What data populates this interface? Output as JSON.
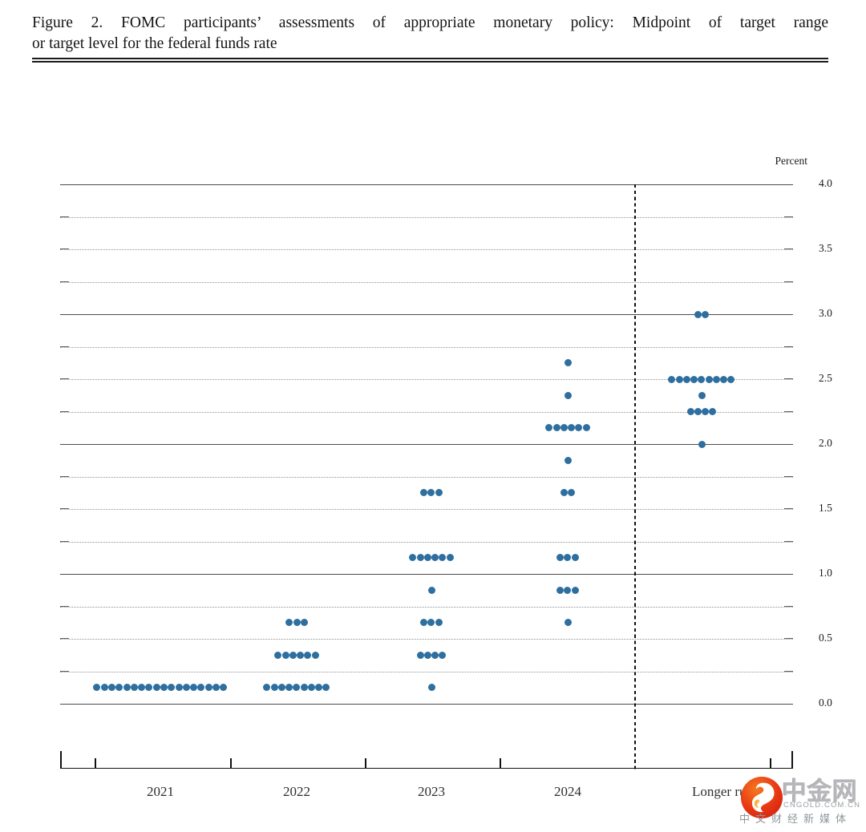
{
  "figure": {
    "title_line1": "Figure 2.  FOMC participants’ assessments of appropriate monetary policy:  Midpoint of target range",
    "title_line2": "or target level for the federal funds rate"
  },
  "watermark": {
    "brand": "中金网",
    "domain": "CNGOLD.COM.CN",
    "tagline": "中文财经新媒体"
  },
  "chart_data": {
    "type": "scatter",
    "subtype": "fomc-dot-plot",
    "title": "Figure 2. FOMC participants’ assessments of appropriate monetary policy: Midpoint of target range or target level for the federal funds rate",
    "ylabel": "Percent",
    "ylim": [
      0.0,
      4.0
    ],
    "gridline_step": 0.25,
    "solid_gridlines_at_integers": true,
    "grid": true,
    "legend_position": "none",
    "dot_color": "#2e6f9f",
    "yticks": [
      {
        "value": 4.0,
        "label": "4.0"
      },
      {
        "value": 3.5,
        "label": "3.5"
      },
      {
        "value": 3.0,
        "label": "3.0"
      },
      {
        "value": 2.5,
        "label": "2.5"
      },
      {
        "value": 2.0,
        "label": "2.0"
      },
      {
        "value": 1.5,
        "label": "1.5"
      },
      {
        "value": 1.0,
        "label": "1.0"
      },
      {
        "value": 0.5,
        "label": "0.5"
      },
      {
        "value": 0.0,
        "label": "0.0"
      }
    ],
    "categories": [
      "2021",
      "2022",
      "2023",
      "2024",
      "Longer run"
    ],
    "separator_after_category": "2024",
    "series": [
      {
        "category": "2021",
        "dots": [
          {
            "rate": 0.125,
            "count": 18
          }
        ]
      },
      {
        "category": "2022",
        "dots": [
          {
            "rate": 0.625,
            "count": 3
          },
          {
            "rate": 0.375,
            "count": 6
          },
          {
            "rate": 0.125,
            "count": 9
          }
        ]
      },
      {
        "category": "2023",
        "dots": [
          {
            "rate": 1.625,
            "count": 3
          },
          {
            "rate": 1.125,
            "count": 6
          },
          {
            "rate": 0.875,
            "count": 1
          },
          {
            "rate": 0.625,
            "count": 3
          },
          {
            "rate": 0.375,
            "count": 4
          },
          {
            "rate": 0.125,
            "count": 1
          }
        ]
      },
      {
        "category": "2024",
        "dots": [
          {
            "rate": 2.625,
            "count": 1
          },
          {
            "rate": 2.375,
            "count": 1
          },
          {
            "rate": 2.125,
            "count": 6
          },
          {
            "rate": 1.875,
            "count": 1
          },
          {
            "rate": 1.625,
            "count": 2
          },
          {
            "rate": 1.125,
            "count": 3
          },
          {
            "rate": 0.875,
            "count": 3
          },
          {
            "rate": 0.625,
            "count": 1
          }
        ]
      },
      {
        "category": "Longer run",
        "dots": [
          {
            "rate": 3.0,
            "count": 2
          },
          {
            "rate": 2.5,
            "count": 9
          },
          {
            "rate": 2.375,
            "count": 1
          },
          {
            "rate": 2.25,
            "count": 4
          },
          {
            "rate": 2.0,
            "count": 1
          }
        ]
      }
    ]
  }
}
